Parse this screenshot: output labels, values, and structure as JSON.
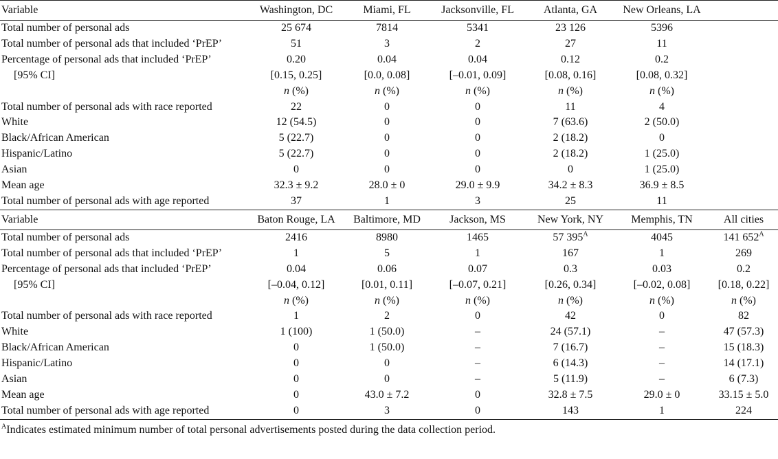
{
  "footnote_marker": "A",
  "footnote_text": "Indicates estimated minimum number of total personal advertisements posted during the data collection period.",
  "n_pct": [
    "n",
    " (%)"
  ],
  "panel1": {
    "header": [
      "Variable",
      "Washington, DC",
      "Miami, FL",
      "Jacksonville, FL",
      "Atlanta, GA",
      "New Orleans, LA",
      ""
    ],
    "rows_a": [
      {
        "label": "Total number of personal ads",
        "cells": [
          "25 674",
          "7814",
          "5341",
          "23 126",
          "5396",
          ""
        ]
      },
      {
        "label": "Total number of personal ads that included ‘PrEP’",
        "cells": [
          "51",
          "3",
          "2",
          "27",
          "11",
          ""
        ]
      },
      {
        "label": "Percentage of personal ads that included ‘PrEP’",
        "cells": [
          "0.20",
          "0.04",
          "0.04",
          "0.12",
          "0.2",
          ""
        ]
      },
      {
        "label": "[95% CI]",
        "cells": [
          "[0.15, 0.25]",
          "[0.0, 0.08]",
          "[–0.01, 0.09]",
          "[0.08, 0.16]",
          "[0.08, 0.32]",
          ""
        ]
      }
    ],
    "rows_b": [
      {
        "label": "Total number of personal ads with race reported",
        "cells": [
          "22",
          "0",
          "0",
          "11",
          "4",
          ""
        ]
      },
      {
        "label": "White",
        "cells": [
          "12 (54.5)",
          "0",
          "0",
          "7 (63.6)",
          "2 (50.0)",
          ""
        ]
      },
      {
        "label": "Black/African American",
        "cells": [
          "5 (22.7)",
          "0",
          "0",
          "2 (18.2)",
          "0",
          ""
        ]
      },
      {
        "label": "Hispanic/Latino",
        "cells": [
          "5 (22.7)",
          "0",
          "0",
          "2 (18.2)",
          "1 (25.0)",
          ""
        ]
      },
      {
        "label": "Asian",
        "cells": [
          "0",
          "0",
          "0",
          "0",
          "1 (25.0)",
          ""
        ]
      },
      {
        "label": "Mean age",
        "cells": [
          "32.3 ± 9.2",
          "28.0 ± 0",
          "29.0 ± 9.9",
          "34.2 ± 8.3",
          "36.9 ± 8.5",
          ""
        ]
      },
      {
        "label": "Total number of personal ads with age reported",
        "cells": [
          "37",
          "1",
          "3",
          "25",
          "11",
          ""
        ]
      }
    ]
  },
  "panel2": {
    "header": [
      "Variable",
      "Baton Rouge, LA",
      "Baltimore, MD",
      "Jackson, MS",
      "New York, NY",
      "Memphis, TN",
      "All cities"
    ],
    "rows_a": [
      {
        "label": "Total number of personal ads",
        "cells": [
          "2416",
          "8980",
          "1465",
          "57 395",
          "4045",
          "141 652"
        ]
      },
      {
        "label": "Total number of personal ads that included ‘PrEP’",
        "cells": [
          "1",
          "5",
          "1",
          "167",
          "1",
          "269"
        ]
      },
      {
        "label": "Percentage of personal ads that included ‘PrEP’",
        "cells": [
          "0.04",
          "0.06",
          "0.07",
          "0.3",
          "0.03",
          "0.2"
        ]
      },
      {
        "label": "[95% CI]",
        "cells": [
          "[–0.04, 0.12]",
          "[0.01, 0.11]",
          "[–0.07, 0.21]",
          "[0.26, 0.34]",
          "[–0.02, 0.08]",
          "[0.18, 0.22]"
        ]
      }
    ],
    "rows_b": [
      {
        "label": "Total number of personal ads with race reported",
        "cells": [
          "1",
          "2",
          "0",
          "42",
          "0",
          "82"
        ]
      },
      {
        "label": "White",
        "cells": [
          "1 (100)",
          "1 (50.0)",
          "–",
          "24 (57.1)",
          "–",
          "47 (57.3)"
        ]
      },
      {
        "label": "Black/African American",
        "cells": [
          "0",
          "1 (50.0)",
          "–",
          "7 (16.7)",
          "–",
          "15 (18.3)"
        ]
      },
      {
        "label": "Hispanic/Latino",
        "cells": [
          "0",
          "0",
          "–",
          "6 (14.3)",
          "–",
          "14 (17.1)"
        ]
      },
      {
        "label": "Asian",
        "cells": [
          "0",
          "0",
          "–",
          "5 (11.9)",
          "–",
          "6 (7.3)"
        ]
      },
      {
        "label": "Mean age",
        "cells": [
          "0",
          "43.0 ± 7.2",
          "0",
          "32.8 ± 7.5",
          "29.0 ± 0",
          "33.15 ± 5.0"
        ]
      },
      {
        "label": "Total number of personal ads with age reported",
        "cells": [
          "0",
          "3",
          "0",
          "143",
          "1",
          "224"
        ]
      }
    ]
  }
}
